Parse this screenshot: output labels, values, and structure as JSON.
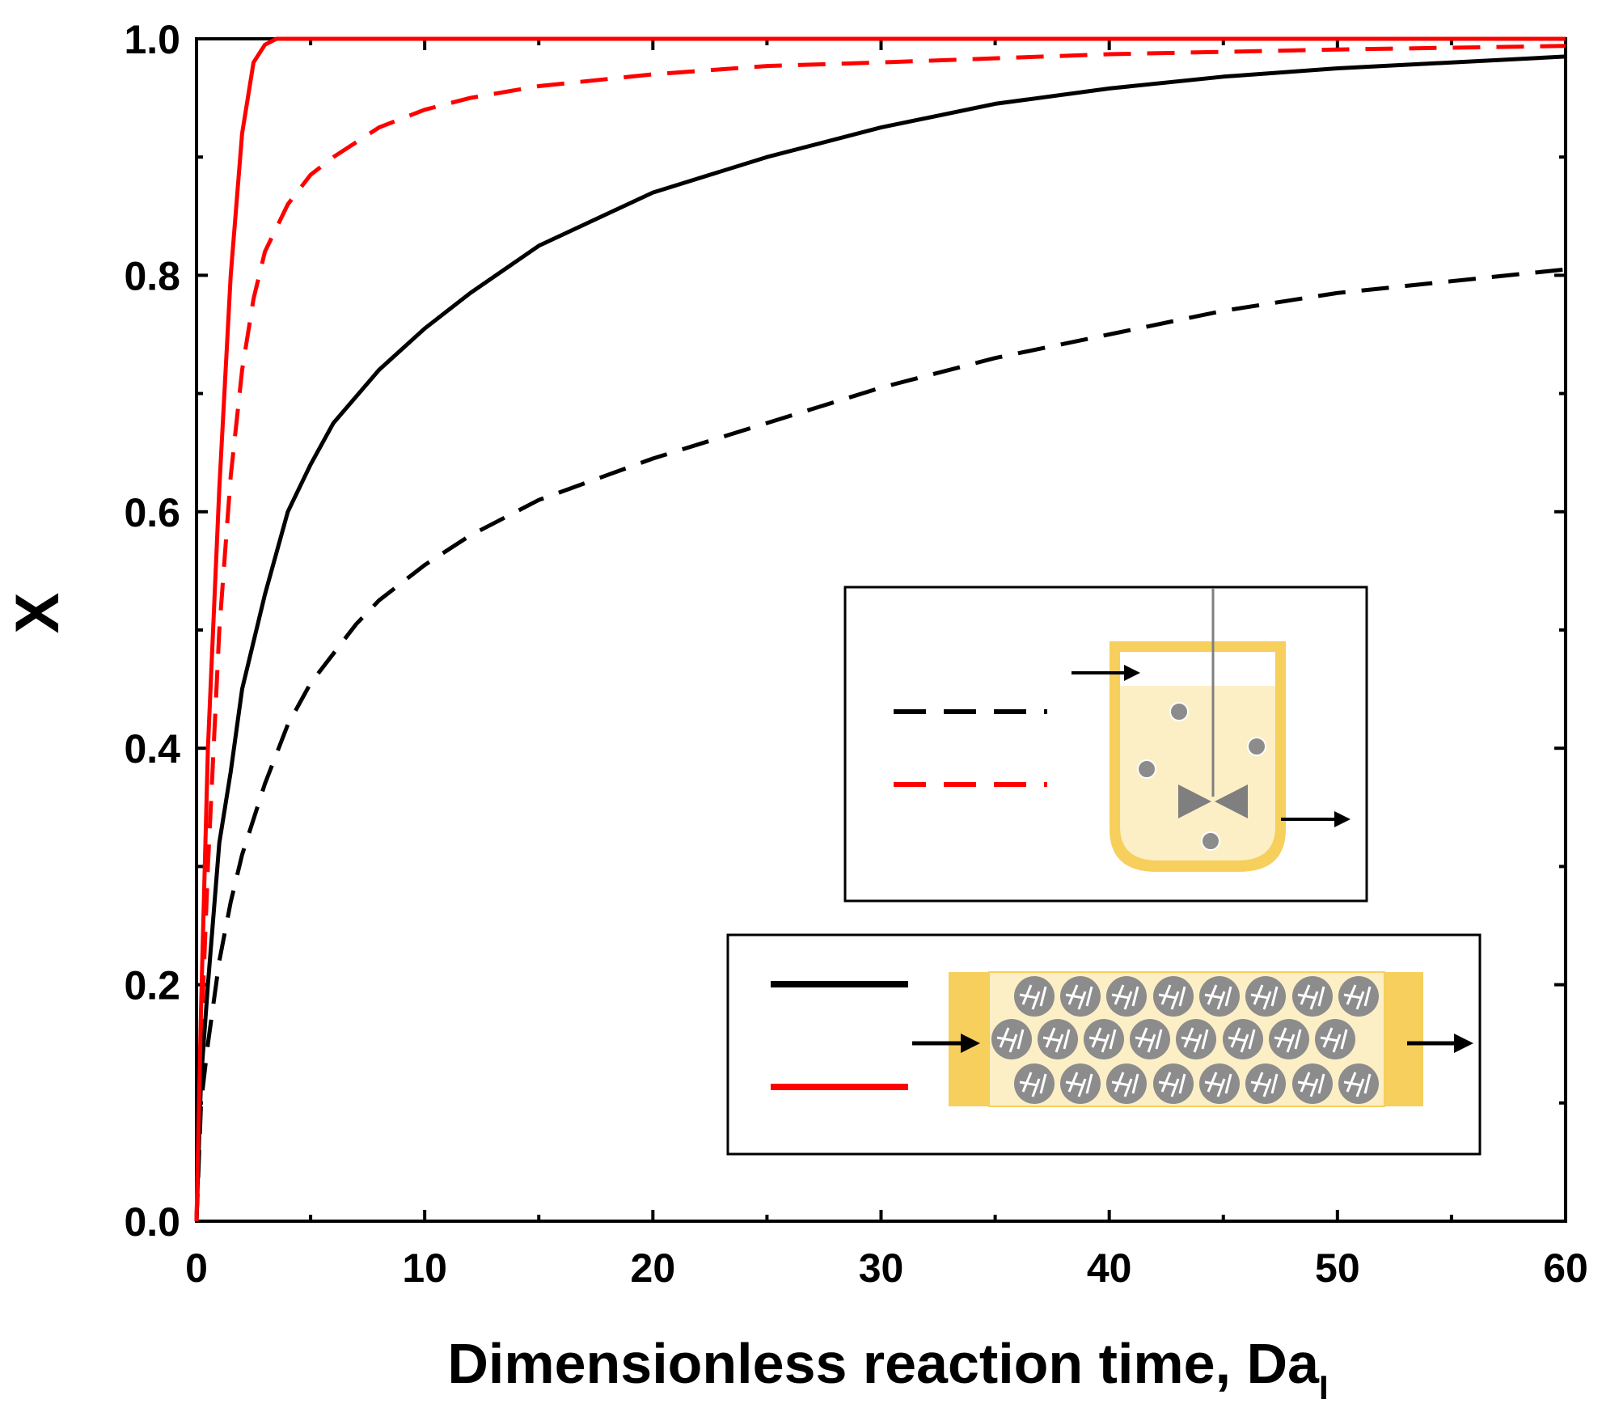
{
  "chart_data": {
    "type": "line",
    "title": "",
    "xlabel": "Dimensionless reaction time, Da",
    "xlabel_subscript": "I",
    "ylabel": "X",
    "xlim": [
      0,
      60
    ],
    "ylim": [
      0,
      1.0
    ],
    "x_ticks": [
      0,
      10,
      20,
      30,
      40,
      50,
      60
    ],
    "x_tick_labels": [
      "0",
      "10",
      "20",
      "30",
      "40",
      "50",
      "60"
    ],
    "y_ticks": [
      0.0,
      0.2,
      0.4,
      0.6,
      0.8,
      1.0
    ],
    "y_tick_labels": [
      "0.0",
      "0.2",
      "0.4",
      "0.6",
      "0.8",
      "1.0"
    ],
    "grid": false,
    "series": [
      {
        "name": "CSTR, black dashed",
        "color": "#000000",
        "style": "dashed",
        "x": [
          0,
          0.2,
          0.5,
          1,
          1.5,
          2,
          3,
          4,
          5,
          6,
          7,
          8,
          10,
          12,
          15,
          20,
          25,
          30,
          35,
          40,
          45,
          50,
          55,
          60
        ],
        "y": [
          0,
          0.1,
          0.15,
          0.22,
          0.27,
          0.31,
          0.37,
          0.42,
          0.455,
          0.48,
          0.505,
          0.525,
          0.555,
          0.58,
          0.61,
          0.645,
          0.675,
          0.705,
          0.73,
          0.75,
          0.77,
          0.785,
          0.795,
          0.805
        ]
      },
      {
        "name": "CSTR, red dashed",
        "color": "#ff0000",
        "style": "dashed",
        "x": [
          0,
          0.2,
          0.5,
          1,
          1.5,
          2,
          2.5,
          3,
          4,
          5,
          6,
          8,
          10,
          12,
          15,
          20,
          25,
          30,
          40,
          50,
          60
        ],
        "y": [
          0,
          0.15,
          0.3,
          0.5,
          0.63,
          0.72,
          0.78,
          0.82,
          0.86,
          0.885,
          0.9,
          0.925,
          0.94,
          0.95,
          0.96,
          0.97,
          0.977,
          0.98,
          0.987,
          0.991,
          0.994
        ]
      },
      {
        "name": "PFR, black solid",
        "color": "#000000",
        "style": "solid",
        "x": [
          0,
          0.2,
          0.5,
          1,
          1.5,
          2,
          3,
          4,
          5,
          6,
          8,
          10,
          12,
          15,
          20,
          25,
          30,
          35,
          40,
          45,
          50,
          55,
          60
        ],
        "y": [
          0,
          0.12,
          0.2,
          0.32,
          0.38,
          0.45,
          0.53,
          0.6,
          0.64,
          0.675,
          0.72,
          0.755,
          0.785,
          0.825,
          0.87,
          0.9,
          0.925,
          0.945,
          0.958,
          0.968,
          0.975,
          0.98,
          0.985
        ]
      },
      {
        "name": "PFR, red solid",
        "color": "#ff0000",
        "style": "solid",
        "x": [
          0,
          0.2,
          0.5,
          1,
          1.5,
          2,
          2.5,
          3,
          3.5,
          4,
          10,
          20,
          30,
          40,
          50,
          60
        ],
        "y": [
          0,
          0.18,
          0.4,
          0.62,
          0.8,
          0.92,
          0.98,
          0.995,
          1.0,
          1.0,
          1.0,
          1.0,
          1.0,
          1.0,
          1.0,
          1.0
        ]
      }
    ],
    "insets": [
      {
        "name": "CSTR reactor schematic",
        "legend_entries": [
          "black dashed",
          "red dashed"
        ]
      },
      {
        "name": "Packed-bed reactor schematic",
        "legend_entries": [
          "black solid",
          "red solid"
        ]
      }
    ]
  },
  "colors": {
    "vessel_wall": "#f6cf5c",
    "vessel_fill": "#fcefc6",
    "particle": "#8c8c8c",
    "impeller": "#7f7f7f"
  }
}
